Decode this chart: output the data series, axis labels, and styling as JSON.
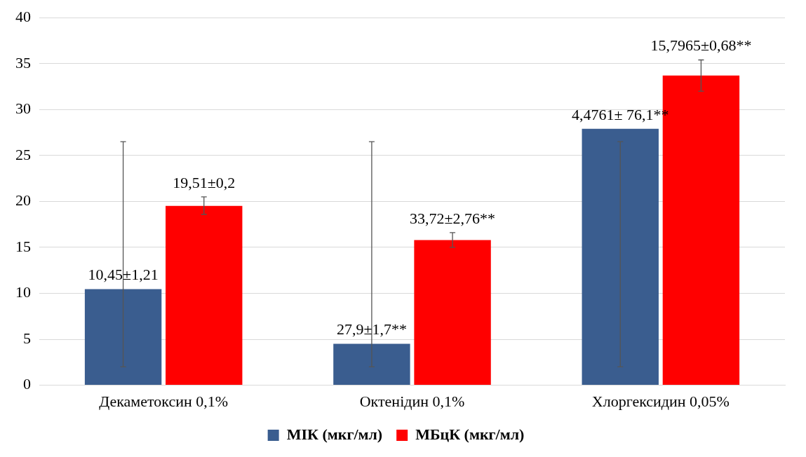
{
  "chart_data": {
    "type": "bar",
    "categories": [
      "Декаметоксин 0,1%",
      "Октенідин 0,1%",
      "Хлоргексидин 0,05%"
    ],
    "series": [
      {
        "name": "МІК (мкг/мл)",
        "color": "#3a5d8f",
        "values": [
          10.45,
          4.5,
          27.9
        ],
        "errors": [
          [
            2,
            26.5
          ],
          [
            2,
            26.5
          ],
          [
            2,
            26.5
          ]
        ]
      },
      {
        "name": "МБцК (мкг/мл)",
        "color": "#ff0000",
        "values": [
          19.51,
          15.8,
          33.7
        ],
        "errors": [
          [
            18.6,
            20.5
          ],
          [
            15,
            16.6
          ],
          [
            32,
            35.4
          ]
        ]
      }
    ],
    "annotations": [
      {
        "text": "10,45±1,21",
        "x": "Декаметоксин 0,1%",
        "y": 10.45
      },
      {
        "text": "19,51±0,2",
        "x": "Декаметоксин 0,1%",
        "y": 19.51
      },
      {
        "text": "27,9±1,7**",
        "x": "Октенідин 0,1%",
        "y": 4.5
      },
      {
        "text": "33,72±2,76**",
        "x": "Октенідин 0,1%",
        "y": 15.8
      },
      {
        "text": "4,4761± 76,1**",
        "x": "Хлоргексидин 0,05%",
        "y": 27.9
      },
      {
        "text": "15,7965±0,68**",
        "x": "Хлоргексидин 0,05%",
        "y": 33.7
      }
    ],
    "ylim": [
      0,
      40
    ],
    "yticks": [
      0,
      5,
      10,
      15,
      20,
      25,
      30,
      35,
      40
    ],
    "grid": "y",
    "legend": "bottom"
  }
}
